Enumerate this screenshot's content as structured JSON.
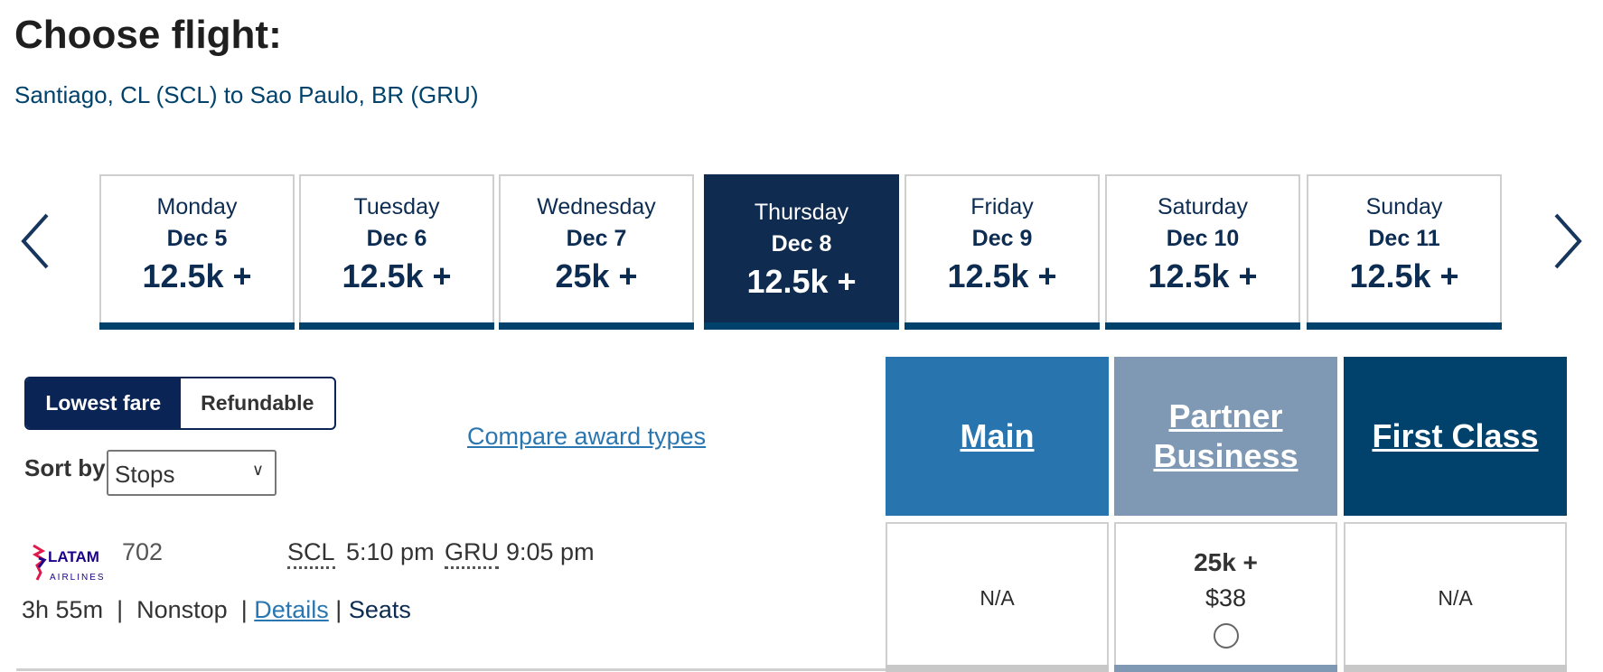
{
  "header": {
    "title": "Choose flight:",
    "route": "Santiago, CL (SCL) to Sao Paulo, BR (GRU)"
  },
  "dates": [
    {
      "day": "Monday",
      "date": "Dec 5",
      "price": "12.5k +",
      "selected": false
    },
    {
      "day": "Tuesday",
      "date": "Dec 6",
      "price": "12.5k +",
      "selected": false
    },
    {
      "day": "Wednesday",
      "date": "Dec 7",
      "price": "25k +",
      "selected": false
    },
    {
      "day": "Thursday",
      "date": "Dec 8",
      "price": "12.5k +",
      "selected": true
    },
    {
      "day": "Friday",
      "date": "Dec 9",
      "price": "12.5k +",
      "selected": false
    },
    {
      "day": "Saturday",
      "date": "Dec 10",
      "price": "12.5k +",
      "selected": false
    },
    {
      "day": "Sunday",
      "date": "Dec 11",
      "price": "12.5k +",
      "selected": false
    }
  ],
  "filters": {
    "lowest": "Lowest fare",
    "refundable": "Refundable",
    "sort_label": "Sort by",
    "sort_value": "Stops",
    "compare": "Compare award types"
  },
  "fare_classes": [
    {
      "name": "Main",
      "color": "#2874ae",
      "cell": "N/A"
    },
    {
      "name": "Partner Business",
      "color": "#7f99b4",
      "miles": "25k +",
      "cash": "$38"
    },
    {
      "name": "First Class",
      "color": "#00426b",
      "cell": "N/A"
    }
  ],
  "flight": {
    "airline": "LATAM AIRLINES",
    "number": "702",
    "origin": "SCL",
    "depart": "5:10 pm",
    "dest": "GRU",
    "arrive": "9:05 pm",
    "duration": "3h 55m",
    "sep": "|",
    "stops": "Nonstop",
    "details": "Details",
    "seats": "Seats"
  },
  "colors": {
    "selected_date": "#102b50",
    "accent": "#00426b",
    "link": "#2a76b0"
  }
}
